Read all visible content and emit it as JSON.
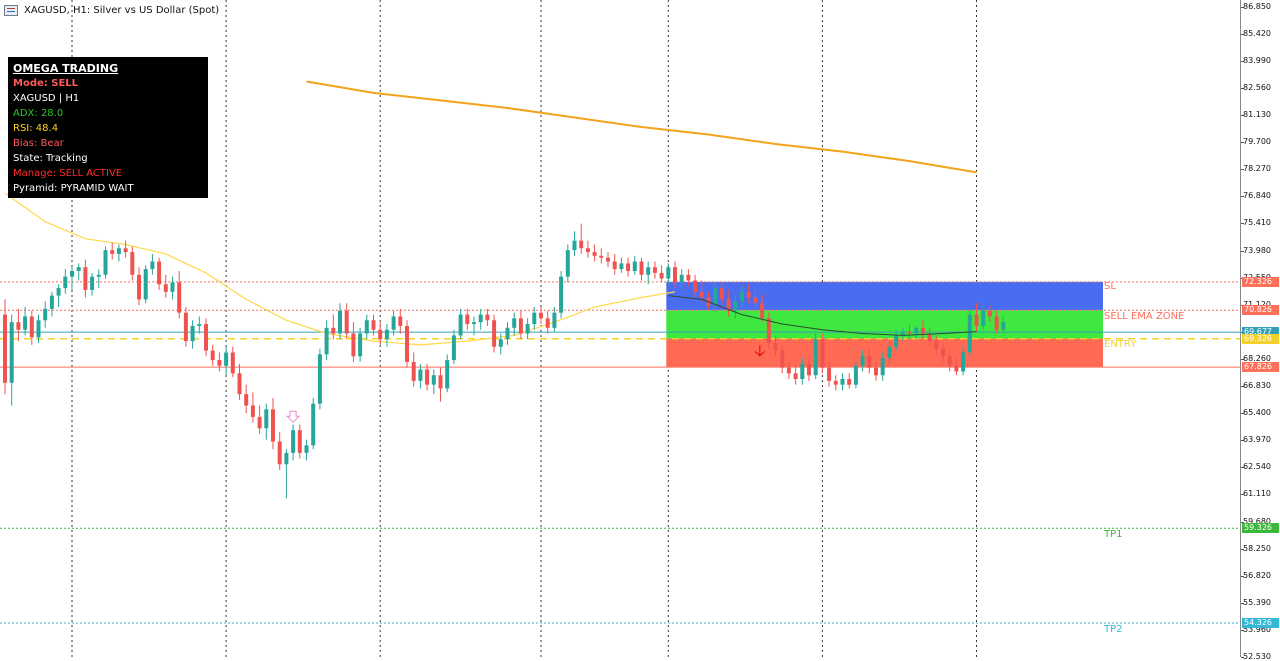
{
  "window": {
    "title": "XAGUSD, H1:  Silver vs US Dollar (Spot)",
    "icon": "chart-window-icon"
  },
  "info_panel": {
    "title": "OMEGA TRADING",
    "lines": [
      {
        "text": "Mode: SELL",
        "color": "#ff5a5a",
        "bold": true
      },
      {
        "text": "XAGUSD | H1",
        "color": "#ffffff",
        "bold": false
      },
      {
        "text": "ADX: 28.0",
        "color": "#27c427",
        "bold": false
      },
      {
        "text": "RSI: 48.4",
        "color": "#ffd21e",
        "bold": false
      },
      {
        "text": "Bias: Bear",
        "color": "#ff5a5a",
        "bold": false
      },
      {
        "text": "State: Tracking",
        "color": "#ffffff",
        "bold": false
      },
      {
        "text": "Manage: SELL ACTIVE",
        "color": "#ff2a2a",
        "bold": false
      },
      {
        "text": "Pyramid: PYRAMID WAIT",
        "color": "#ffffff",
        "bold": false
      }
    ]
  },
  "levels": {
    "sl": {
      "label": "SL",
      "price": 72.326,
      "tag": "72.326",
      "color": "#ff6f5a"
    },
    "sell_ema": {
      "label": "SELL EMA ZONE",
      "price": 70.826,
      "tag": "70.826",
      "color": "#ff6f5a"
    },
    "current": {
      "price": 69.677,
      "tag": "69.677",
      "color": "#34a0b8"
    },
    "entry": {
      "label": "ENTRY",
      "price": 69.326,
      "tag": "69.326",
      "color": "#f3d12b"
    },
    "entry_low": {
      "price": 67.826,
      "tag": "67.826",
      "color": "#ff6f5a"
    },
    "tp1": {
      "label": "TP1",
      "price": 59.326,
      "tag": "59.326",
      "color": "#39b83a"
    },
    "tp2": {
      "label": "TP2",
      "price": 54.326,
      "tag": "54.326",
      "color": "#35b8d8"
    }
  },
  "zones": {
    "blue": "#4a6cf0",
    "green": "#3ee83e",
    "red": "#ff6a55"
  },
  "colors": {
    "bull": "#26a69a",
    "bear": "#ef5350",
    "ma_slow": "#f3a21b",
    "ma_fast": "#ffd84d",
    "ema_short": "#2d4a2d",
    "grid": "#333333",
    "sell_arrow": "#e00000"
  },
  "chart_data": {
    "type": "candlestick",
    "symbol": "XAGUSD",
    "timeframe": "H1",
    "ylim": [
      52.53,
      87.2
    ],
    "y_ticks": [
      86.85,
      85.42,
      83.99,
      82.56,
      81.13,
      79.7,
      78.27,
      76.84,
      75.41,
      73.98,
      72.55,
      71.12,
      69.69,
      68.26,
      66.83,
      65.4,
      63.97,
      62.54,
      61.11,
      59.68,
      58.25,
      56.82,
      55.39,
      53.96,
      52.53
    ],
    "y_tick_labels": [
      "86.850",
      "85.420",
      "83.990",
      "82.560",
      "81.130",
      "79.700",
      "78.270",
      "76.840",
      "75.410",
      "73.980",
      "72.550",
      "71.120",
      "69.690",
      "68.260",
      "66.830",
      "65.400",
      "63.970",
      "62.540",
      "61.110",
      "59.680",
      "58.250",
      "56.820",
      "55.390",
      "53.960",
      "52.530"
    ],
    "grid": "vertical-dotted",
    "candles": [
      {
        "o": 70.6,
        "h": 71.4,
        "l": 66.4,
        "c": 67.0
      },
      {
        "o": 67.0,
        "h": 70.6,
        "l": 65.8,
        "c": 70.2
      },
      {
        "o": 70.2,
        "h": 70.9,
        "l": 69.2,
        "c": 69.8
      },
      {
        "o": 69.8,
        "h": 71.0,
        "l": 69.5,
        "c": 70.5
      },
      {
        "o": 70.5,
        "h": 70.8,
        "l": 69.0,
        "c": 69.4
      },
      {
        "o": 69.4,
        "h": 70.6,
        "l": 69.1,
        "c": 70.3
      },
      {
        "o": 70.3,
        "h": 71.3,
        "l": 69.9,
        "c": 70.9
      },
      {
        "o": 70.9,
        "h": 71.8,
        "l": 70.5,
        "c": 71.6
      },
      {
        "o": 71.6,
        "h": 72.2,
        "l": 71.0,
        "c": 72.0
      },
      {
        "o": 72.0,
        "h": 73.0,
        "l": 71.7,
        "c": 72.6
      },
      {
        "o": 72.6,
        "h": 73.1,
        "l": 71.9,
        "c": 72.9
      },
      {
        "o": 72.9,
        "h": 73.3,
        "l": 72.4,
        "c": 73.1
      },
      {
        "o": 73.1,
        "h": 73.5,
        "l": 71.5,
        "c": 71.9
      },
      {
        "o": 71.9,
        "h": 72.8,
        "l": 71.6,
        "c": 72.6
      },
      {
        "o": 72.6,
        "h": 73.0,
        "l": 72.0,
        "c": 72.7
      },
      {
        "o": 72.7,
        "h": 74.2,
        "l": 72.5,
        "c": 74.0
      },
      {
        "o": 74.0,
        "h": 74.4,
        "l": 73.5,
        "c": 73.8
      },
      {
        "o": 73.8,
        "h": 74.3,
        "l": 73.4,
        "c": 74.1
      },
      {
        "o": 74.1,
        "h": 74.5,
        "l": 73.6,
        "c": 73.9
      },
      {
        "o": 73.9,
        "h": 74.2,
        "l": 72.4,
        "c": 72.7
      },
      {
        "o": 72.7,
        "h": 73.1,
        "l": 71.1,
        "c": 71.4
      },
      {
        "o": 71.4,
        "h": 73.2,
        "l": 71.2,
        "c": 73.0
      },
      {
        "o": 73.0,
        "h": 73.8,
        "l": 72.7,
        "c": 73.4
      },
      {
        "o": 73.4,
        "h": 73.6,
        "l": 71.9,
        "c": 72.2
      },
      {
        "o": 72.2,
        "h": 72.7,
        "l": 71.5,
        "c": 71.8
      },
      {
        "o": 71.8,
        "h": 72.6,
        "l": 71.4,
        "c": 72.3
      },
      {
        "o": 72.3,
        "h": 72.9,
        "l": 70.4,
        "c": 70.7
      },
      {
        "o": 70.7,
        "h": 71.0,
        "l": 68.9,
        "c": 69.2
      },
      {
        "o": 69.2,
        "h": 70.3,
        "l": 68.8,
        "c": 70.0
      },
      {
        "o": 70.0,
        "h": 70.5,
        "l": 69.6,
        "c": 70.1
      },
      {
        "o": 70.1,
        "h": 70.4,
        "l": 68.4,
        "c": 68.7
      },
      {
        "o": 68.7,
        "h": 69.0,
        "l": 67.9,
        "c": 68.2
      },
      {
        "o": 68.2,
        "h": 68.6,
        "l": 67.6,
        "c": 67.9
      },
      {
        "o": 67.9,
        "h": 68.9,
        "l": 67.4,
        "c": 68.6
      },
      {
        "o": 68.6,
        "h": 68.9,
        "l": 67.3,
        "c": 67.5
      },
      {
        "o": 67.5,
        "h": 68.0,
        "l": 66.1,
        "c": 66.4
      },
      {
        "o": 66.4,
        "h": 66.9,
        "l": 65.4,
        "c": 65.8
      },
      {
        "o": 65.8,
        "h": 66.5,
        "l": 64.9,
        "c": 65.2
      },
      {
        "o": 65.2,
        "h": 65.8,
        "l": 64.3,
        "c": 64.6
      },
      {
        "o": 64.6,
        "h": 65.9,
        "l": 64.0,
        "c": 65.6
      },
      {
        "o": 65.6,
        "h": 66.2,
        "l": 63.5,
        "c": 63.9
      },
      {
        "o": 63.9,
        "h": 64.4,
        "l": 62.4,
        "c": 62.7
      },
      {
        "o": 62.7,
        "h": 63.5,
        "l": 60.9,
        "c": 63.3
      },
      {
        "o": 63.3,
        "h": 64.8,
        "l": 62.9,
        "c": 64.5
      },
      {
        "o": 64.5,
        "h": 64.8,
        "l": 63.0,
        "c": 63.3
      },
      {
        "o": 63.3,
        "h": 64.0,
        "l": 62.9,
        "c": 63.7
      },
      {
        "o": 63.7,
        "h": 66.2,
        "l": 63.5,
        "c": 65.9
      },
      {
        "o": 65.9,
        "h": 68.8,
        "l": 65.6,
        "c": 68.5
      },
      {
        "o": 68.5,
        "h": 70.3,
        "l": 68.2,
        "c": 69.9
      },
      {
        "o": 69.9,
        "h": 70.6,
        "l": 69.3,
        "c": 69.6
      },
      {
        "o": 69.6,
        "h": 71.2,
        "l": 69.3,
        "c": 70.8
      },
      {
        "o": 70.8,
        "h": 71.2,
        "l": 69.3,
        "c": 69.6
      },
      {
        "o": 69.6,
        "h": 70.2,
        "l": 68.1,
        "c": 68.4
      },
      {
        "o": 68.4,
        "h": 69.9,
        "l": 68.1,
        "c": 69.6
      },
      {
        "o": 69.6,
        "h": 70.6,
        "l": 69.3,
        "c": 70.3
      },
      {
        "o": 70.3,
        "h": 70.6,
        "l": 69.5,
        "c": 69.8
      },
      {
        "o": 69.8,
        "h": 70.2,
        "l": 69.0,
        "c": 69.3
      },
      {
        "o": 69.3,
        "h": 70.1,
        "l": 68.9,
        "c": 69.8
      },
      {
        "o": 69.8,
        "h": 70.8,
        "l": 69.5,
        "c": 70.5
      },
      {
        "o": 70.5,
        "h": 70.9,
        "l": 69.6,
        "c": 70.0
      },
      {
        "o": 70.0,
        "h": 70.3,
        "l": 67.8,
        "c": 68.1
      },
      {
        "o": 68.1,
        "h": 68.6,
        "l": 66.8,
        "c": 67.1
      },
      {
        "o": 67.1,
        "h": 68.0,
        "l": 66.7,
        "c": 67.7
      },
      {
        "o": 67.7,
        "h": 68.0,
        "l": 66.6,
        "c": 66.9
      },
      {
        "o": 66.9,
        "h": 67.7,
        "l": 66.4,
        "c": 67.4
      },
      {
        "o": 67.4,
        "h": 67.8,
        "l": 66.0,
        "c": 66.7
      },
      {
        "o": 66.7,
        "h": 68.5,
        "l": 66.5,
        "c": 68.2
      },
      {
        "o": 68.2,
        "h": 69.8,
        "l": 68.0,
        "c": 69.5
      },
      {
        "o": 69.5,
        "h": 70.9,
        "l": 69.3,
        "c": 70.6
      },
      {
        "o": 70.6,
        "h": 70.9,
        "l": 69.8,
        "c": 70.1
      },
      {
        "o": 70.1,
        "h": 70.5,
        "l": 69.5,
        "c": 70.2
      },
      {
        "o": 70.2,
        "h": 70.9,
        "l": 69.8,
        "c": 70.6
      },
      {
        "o": 70.6,
        "h": 70.9,
        "l": 70.0,
        "c": 70.3
      },
      {
        "o": 70.3,
        "h": 70.6,
        "l": 68.6,
        "c": 68.9
      },
      {
        "o": 68.9,
        "h": 69.6,
        "l": 68.5,
        "c": 69.3
      },
      {
        "o": 69.3,
        "h": 70.2,
        "l": 69.0,
        "c": 69.9
      },
      {
        "o": 69.9,
        "h": 70.7,
        "l": 69.5,
        "c": 70.4
      },
      {
        "o": 70.4,
        "h": 70.8,
        "l": 69.3,
        "c": 69.6
      },
      {
        "o": 69.6,
        "h": 70.4,
        "l": 69.3,
        "c": 70.1
      },
      {
        "o": 70.1,
        "h": 71.0,
        "l": 69.8,
        "c": 70.7
      },
      {
        "o": 70.7,
        "h": 71.0,
        "l": 70.1,
        "c": 70.4
      },
      {
        "o": 70.4,
        "h": 70.8,
        "l": 69.6,
        "c": 69.9
      },
      {
        "o": 69.9,
        "h": 71.0,
        "l": 69.7,
        "c": 70.7
      },
      {
        "o": 70.7,
        "h": 72.9,
        "l": 70.4,
        "c": 72.6
      },
      {
        "o": 72.6,
        "h": 74.3,
        "l": 72.3,
        "c": 74.0
      },
      {
        "o": 74.0,
        "h": 75.0,
        "l": 73.7,
        "c": 74.5
      },
      {
        "o": 74.5,
        "h": 75.4,
        "l": 73.8,
        "c": 74.1
      },
      {
        "o": 74.1,
        "h": 74.5,
        "l": 73.6,
        "c": 73.9
      },
      {
        "o": 73.9,
        "h": 74.3,
        "l": 73.4,
        "c": 73.7
      },
      {
        "o": 73.7,
        "h": 74.1,
        "l": 73.3,
        "c": 73.6
      },
      {
        "o": 73.6,
        "h": 73.9,
        "l": 73.1,
        "c": 73.4
      },
      {
        "o": 73.4,
        "h": 73.8,
        "l": 72.7,
        "c": 73.0
      },
      {
        "o": 73.0,
        "h": 73.6,
        "l": 72.8,
        "c": 73.3
      },
      {
        "o": 73.3,
        "h": 73.6,
        "l": 72.6,
        "c": 72.9
      },
      {
        "o": 72.9,
        "h": 73.7,
        "l": 72.7,
        "c": 73.4
      },
      {
        "o": 73.4,
        "h": 73.6,
        "l": 72.4,
        "c": 72.7
      },
      {
        "o": 72.7,
        "h": 73.4,
        "l": 72.2,
        "c": 73.1
      },
      {
        "o": 73.1,
        "h": 73.4,
        "l": 72.5,
        "c": 72.8
      },
      {
        "o": 72.8,
        "h": 73.2,
        "l": 72.3,
        "c": 72.5
      },
      {
        "o": 72.5,
        "h": 73.3,
        "l": 72.2,
        "c": 73.1
      },
      {
        "o": 73.1,
        "h": 73.4,
        "l": 72.0,
        "c": 72.3
      },
      {
        "o": 72.3,
        "h": 73.0,
        "l": 71.9,
        "c": 72.7
      },
      {
        "o": 72.7,
        "h": 73.0,
        "l": 72.1,
        "c": 72.4
      },
      {
        "o": 72.4,
        "h": 72.7,
        "l": 71.5,
        "c": 71.8
      },
      {
        "o": 71.8,
        "h": 72.4,
        "l": 71.2,
        "c": 71.5
      },
      {
        "o": 71.5,
        "h": 71.8,
        "l": 70.9,
        "c": 71.1
      },
      {
        "o": 71.1,
        "h": 72.3,
        "l": 70.7,
        "c": 72.0
      },
      {
        "o": 72.0,
        "h": 72.3,
        "l": 71.1,
        "c": 71.4
      },
      {
        "o": 71.4,
        "h": 71.9,
        "l": 70.5,
        "c": 70.8
      },
      {
        "o": 70.8,
        "h": 71.6,
        "l": 70.4,
        "c": 71.3
      },
      {
        "o": 71.3,
        "h": 72.1,
        "l": 71.0,
        "c": 71.8
      },
      {
        "o": 71.8,
        "h": 72.2,
        "l": 71.2,
        "c": 71.5
      },
      {
        "o": 71.5,
        "h": 71.9,
        "l": 71.0,
        "c": 71.2
      },
      {
        "o": 71.2,
        "h": 71.7,
        "l": 70.2,
        "c": 70.4
      },
      {
        "o": 70.4,
        "h": 70.7,
        "l": 68.8,
        "c": 69.1
      },
      {
        "o": 69.1,
        "h": 69.5,
        "l": 68.4,
        "c": 68.7
      },
      {
        "o": 68.7,
        "h": 69.0,
        "l": 67.5,
        "c": 67.8
      },
      {
        "o": 67.8,
        "h": 68.1,
        "l": 67.2,
        "c": 67.5
      },
      {
        "o": 67.5,
        "h": 68.0,
        "l": 66.9,
        "c": 67.2
      },
      {
        "o": 67.2,
        "h": 68.3,
        "l": 66.9,
        "c": 68.0
      },
      {
        "o": 68.0,
        "h": 68.3,
        "l": 67.1,
        "c": 67.4
      },
      {
        "o": 67.4,
        "h": 69.6,
        "l": 67.2,
        "c": 69.3
      },
      {
        "o": 69.3,
        "h": 69.6,
        "l": 67.5,
        "c": 67.8
      },
      {
        "o": 67.8,
        "h": 68.1,
        "l": 66.8,
        "c": 67.1
      },
      {
        "o": 67.1,
        "h": 67.4,
        "l": 66.6,
        "c": 66.9
      },
      {
        "o": 66.9,
        "h": 67.5,
        "l": 66.6,
        "c": 67.2
      },
      {
        "o": 67.2,
        "h": 67.5,
        "l": 66.7,
        "c": 66.9
      },
      {
        "o": 66.9,
        "h": 68.1,
        "l": 66.7,
        "c": 67.9
      },
      {
        "o": 67.9,
        "h": 68.7,
        "l": 67.6,
        "c": 68.4
      },
      {
        "o": 68.4,
        "h": 68.8,
        "l": 67.5,
        "c": 67.8
      },
      {
        "o": 67.8,
        "h": 68.1,
        "l": 67.1,
        "c": 67.4
      },
      {
        "o": 67.4,
        "h": 68.6,
        "l": 67.1,
        "c": 68.3
      },
      {
        "o": 68.3,
        "h": 69.2,
        "l": 68.0,
        "c": 68.9
      },
      {
        "o": 68.9,
        "h": 69.8,
        "l": 68.7,
        "c": 69.5
      },
      {
        "o": 69.5,
        "h": 69.9,
        "l": 69.2,
        "c": 69.7
      },
      {
        "o": 69.7,
        "h": 70.1,
        "l": 69.3,
        "c": 69.6
      },
      {
        "o": 69.6,
        "h": 70.0,
        "l": 69.3,
        "c": 69.9
      },
      {
        "o": 69.9,
        "h": 70.3,
        "l": 69.3,
        "c": 69.6
      },
      {
        "o": 69.6,
        "h": 69.9,
        "l": 68.9,
        "c": 69.2
      },
      {
        "o": 69.2,
        "h": 69.5,
        "l": 68.5,
        "c": 68.8
      },
      {
        "o": 68.8,
        "h": 69.1,
        "l": 68.1,
        "c": 68.4
      },
      {
        "o": 68.4,
        "h": 68.7,
        "l": 67.6,
        "c": 67.9
      },
      {
        "o": 67.9,
        "h": 68.3,
        "l": 67.4,
        "c": 67.6
      },
      {
        "o": 67.6,
        "h": 68.9,
        "l": 67.4,
        "c": 68.6
      },
      {
        "o": 68.6,
        "h": 70.9,
        "l": 68.4,
        "c": 70.6
      },
      {
        "o": 70.6,
        "h": 71.2,
        "l": 69.7,
        "c": 70.0
      },
      {
        "o": 70.0,
        "h": 71.1,
        "l": 69.8,
        "c": 70.8
      },
      {
        "o": 70.8,
        "h": 71.1,
        "l": 70.2,
        "c": 70.5
      },
      {
        "o": 70.5,
        "h": 70.8,
        "l": 69.6,
        "c": 69.8
      },
      {
        "o": 69.8,
        "h": 70.5,
        "l": 69.6,
        "c": 70.2
      }
    ],
    "ma_slow": [
      {
        "i": 45,
        "v": 82.9
      },
      {
        "i": 55,
        "v": 82.3
      },
      {
        "i": 65,
        "v": 81.9
      },
      {
        "i": 75,
        "v": 81.5
      },
      {
        "i": 85,
        "v": 81.0
      },
      {
        "i": 95,
        "v": 80.5
      },
      {
        "i": 105,
        "v": 80.1
      },
      {
        "i": 115,
        "v": 79.6
      },
      {
        "i": 125,
        "v": 79.2
      },
      {
        "i": 135,
        "v": 78.7
      },
      {
        "i": 145,
        "v": 78.1
      }
    ],
    "ma_fast": [
      {
        "i": 0,
        "v": 77.0
      },
      {
        "i": 6,
        "v": 75.5
      },
      {
        "i": 12,
        "v": 74.6
      },
      {
        "i": 18,
        "v": 74.3
      },
      {
        "i": 24,
        "v": 73.8
      },
      {
        "i": 30,
        "v": 72.8
      },
      {
        "i": 36,
        "v": 71.4
      },
      {
        "i": 42,
        "v": 70.3
      },
      {
        "i": 48,
        "v": 69.6
      },
      {
        "i": 55,
        "v": 69.2
      },
      {
        "i": 62,
        "v": 69.0
      },
      {
        "i": 69,
        "v": 69.2
      },
      {
        "i": 76,
        "v": 69.5
      },
      {
        "i": 82,
        "v": 70.2
      },
      {
        "i": 88,
        "v": 71.0
      },
      {
        "i": 95,
        "v": 71.5
      },
      {
        "i": 100,
        "v": 71.8
      }
    ],
    "ema_short": [
      {
        "i": 99,
        "v": 71.6
      },
      {
        "i": 104,
        "v": 71.4
      },
      {
        "i": 110,
        "v": 70.6
      },
      {
        "i": 116,
        "v": 70.1
      },
      {
        "i": 122,
        "v": 69.8
      },
      {
        "i": 128,
        "v": 69.6
      },
      {
        "i": 134,
        "v": 69.5
      },
      {
        "i": 140,
        "v": 69.6
      },
      {
        "i": 145,
        "v": 69.7
      }
    ],
    "sell_arrow_index": 113,
    "buy_arrow_index": 43,
    "zone_start_index": 99,
    "vertical_grid_indices": [
      10,
      33,
      56,
      80,
      99,
      122,
      145
    ]
  }
}
